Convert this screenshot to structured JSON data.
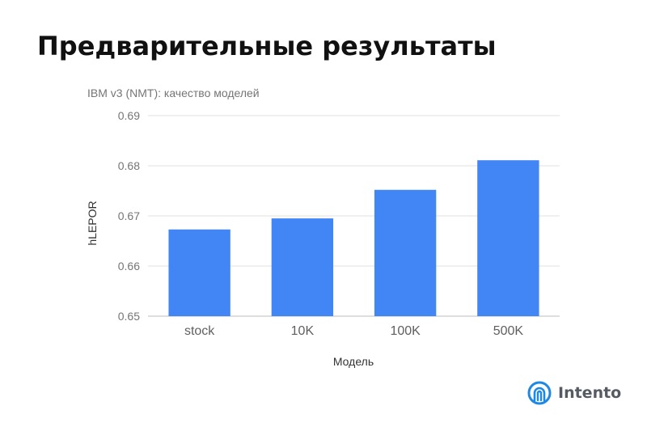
{
  "slide": {
    "title": "Предварительные результаты"
  },
  "logo": {
    "text": "Intento",
    "icon": "intento-logo-icon",
    "color": "#1e88e5"
  },
  "chart_data": {
    "type": "bar",
    "title": "IBM v3 (NMT): качество моделей",
    "xlabel": "Модель",
    "ylabel": "hLEPOR",
    "categories": [
      "stock",
      "10K",
      "100K",
      "500K"
    ],
    "values": [
      0.6673,
      0.6695,
      0.6752,
      0.6811
    ],
    "ylim": [
      0.65,
      0.69
    ],
    "yticks": [
      "0.65",
      "0.66",
      "0.67",
      "0.68",
      "0.69"
    ],
    "bar_color": "#4285f4",
    "grid": true,
    "legend": "none"
  }
}
